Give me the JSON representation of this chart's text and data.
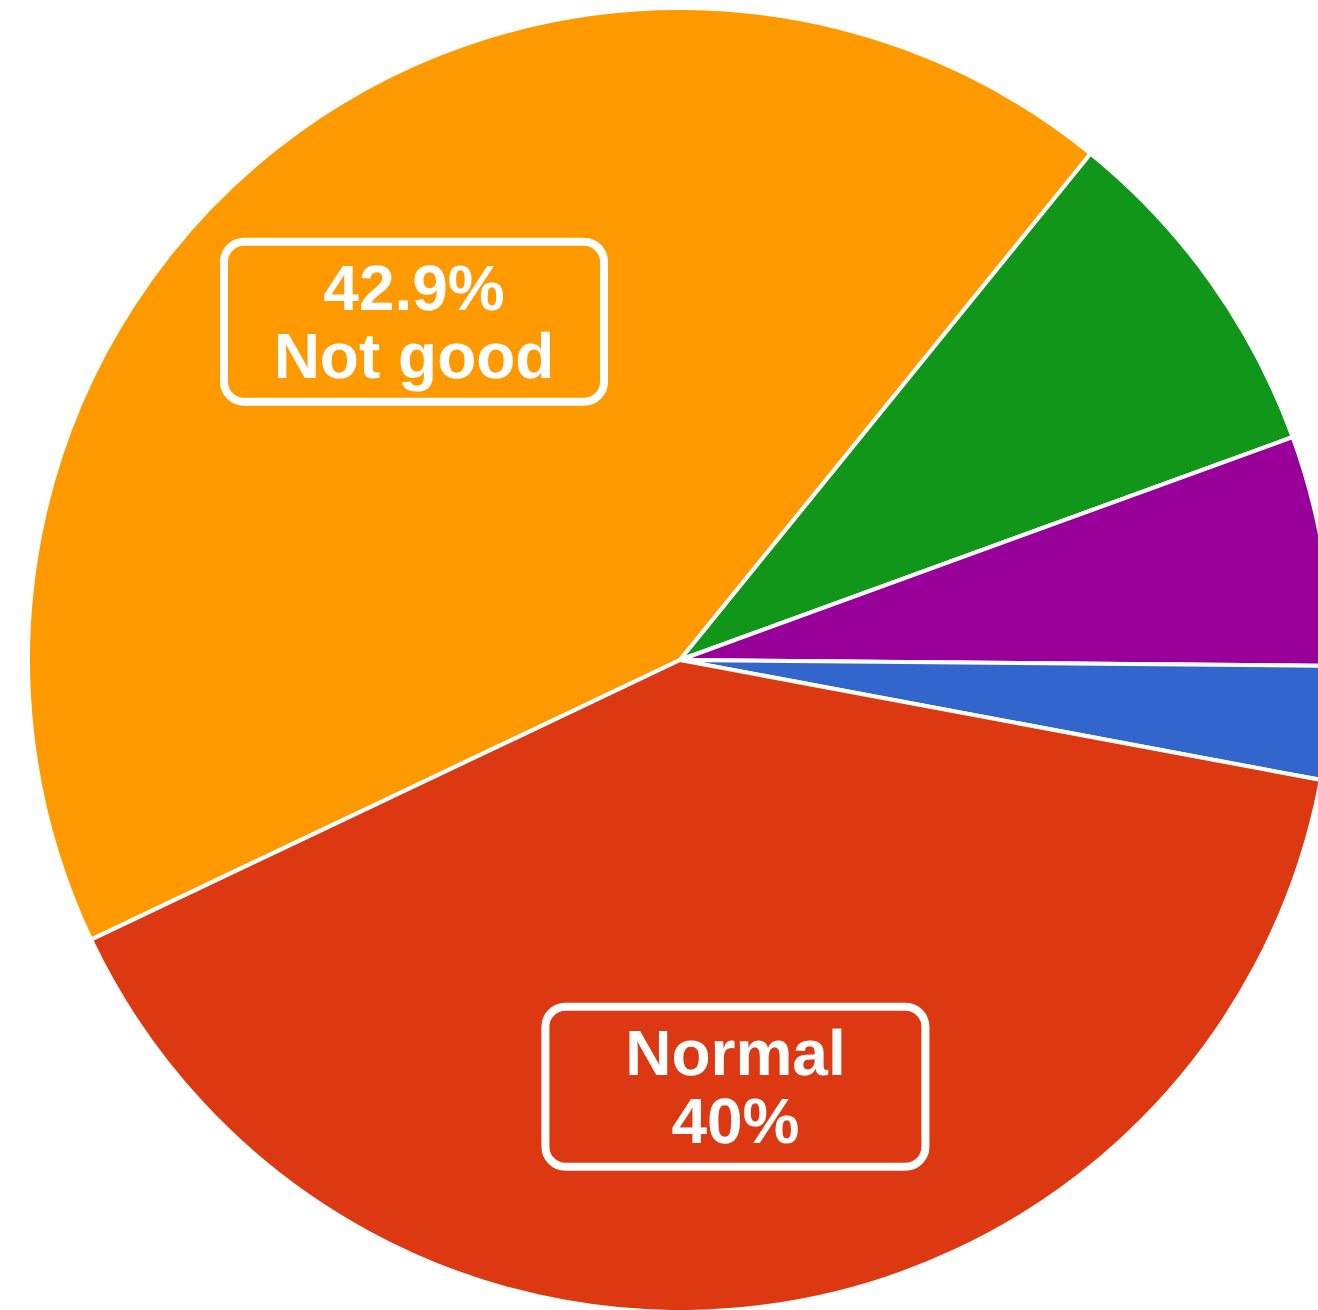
{
  "chart_data": {
    "type": "pie",
    "categories": [
      "Not good",
      null,
      null,
      null,
      "Normal"
    ],
    "values": [
      42.9,
      8.6,
      5.7,
      2.8,
      40
    ],
    "colors": [
      "#ff9900",
      "#109618",
      "#990099",
      "#3366cc",
      "#dc3912"
    ],
    "value_labels": [
      "42.9%",
      null,
      null,
      null,
      "40%"
    ]
  }
}
